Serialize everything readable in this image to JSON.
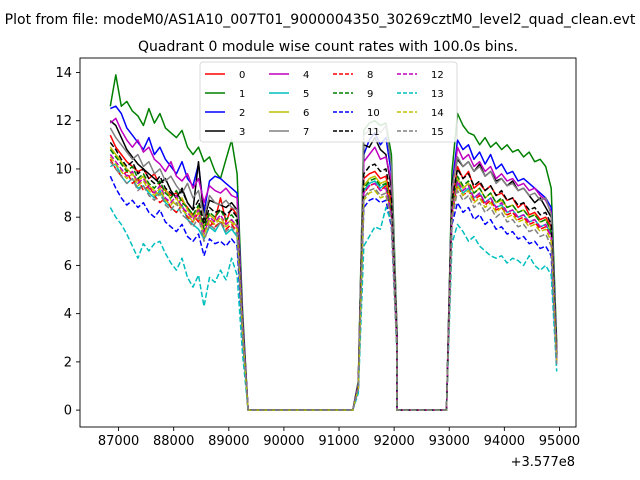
{
  "chart_data": {
    "type": "line",
    "suptitle": "Plot from file: modeM0/AS1A10_007T01_9000004350_30269cztM0_level2_quad_clean.evt",
    "title": "Quadrant 0 module wise count rates with 100.0s bins.",
    "xlabel": "",
    "ylabel": "",
    "x_offset_label": "+3.577e8",
    "xlim": [
      86300,
      95300
    ],
    "ylim": [
      -0.7,
      14.6
    ],
    "xticks": [
      87000,
      88000,
      89000,
      90000,
      91000,
      92000,
      93000,
      94000,
      95000
    ],
    "xtick_labels": [
      "87000",
      "88000",
      "89000",
      "90000",
      "91000",
      "92000",
      "93000",
      "94000",
      "95000"
    ],
    "yticks": [
      0,
      2,
      4,
      6,
      8,
      10,
      12,
      14
    ],
    "ytick_labels": [
      "0",
      "2",
      "4",
      "6",
      "8",
      "10",
      "12",
      "14"
    ],
    "legend_position": "upper center",
    "x_start": 86850,
    "x_step": 100,
    "gap_ranges": [
      [
        89350,
        91250
      ],
      [
        92050,
        92950
      ]
    ],
    "series": [
      {
        "name": "0",
        "color": "#ff0000",
        "dashed": false,
        "seg1": [
          11.4,
          10.9,
          10.6,
          10.3,
          10.1,
          9.9,
          10.0,
          9.6,
          9.8,
          9.3,
          9.1,
          8.9,
          9.0,
          8.7,
          8.4,
          8.1,
          7.8,
          8.5,
          7.6,
          7.9,
          8.8,
          7.8,
          8.4,
          8.1,
          3.5
        ],
        "seg2": [
          1.0,
          9.6,
          9.8,
          9.9,
          9.6,
          9.7,
          8.6,
          3.0
        ],
        "seg3": [
          8.5,
          10.1,
          9.6,
          9.9,
          9.2,
          9.4,
          9.1,
          9.3,
          8.9,
          9.0,
          8.7,
          8.8,
          8.4,
          8.6,
          8.1,
          8.2,
          7.9,
          8.0,
          7.6,
          2.3
        ]
      },
      {
        "name": "1",
        "color": "#008000",
        "dashed": false,
        "seg1": [
          12.6,
          13.9,
          12.6,
          12.8,
          12.4,
          12.2,
          11.8,
          12.5,
          11.9,
          12.3,
          11.7,
          11.5,
          11.3,
          11.6,
          10.9,
          10.6,
          10.9,
          10.3,
          10.5,
          9.9,
          9.6,
          10.4,
          11.2,
          9.8,
          4.1
        ],
        "seg2": [
          1.2,
          11.6,
          11.9,
          12.0,
          11.8,
          11.9,
          10.6,
          3.5
        ],
        "seg3": [
          9.9,
          12.3,
          11.8,
          11.5,
          11.4,
          11.0,
          11.3,
          10.9,
          11.1,
          10.8,
          11.0,
          10.7,
          10.8,
          10.5,
          10.7,
          10.3,
          10.4,
          10.1,
          9.2,
          2.8
        ]
      },
      {
        "name": "2",
        "color": "#0000ff",
        "dashed": false,
        "seg1": [
          12.5,
          12.6,
          12.3,
          11.7,
          11.4,
          11.1,
          10.8,
          11.3,
          10.6,
          10.9,
          10.4,
          10.1,
          9.8,
          10.3,
          9.6,
          9.3,
          10.2,
          8.2,
          9.5,
          9.7,
          9.6,
          9.4,
          9.2,
          9.0,
          3.8
        ],
        "seg2": [
          1.1,
          10.6,
          11.2,
          11.5,
          11.0,
          11.3,
          9.8,
          3.2
        ],
        "seg3": [
          9.3,
          11.2,
          10.8,
          11.0,
          10.4,
          10.7,
          10.2,
          10.6,
          10.0,
          10.2,
          9.8,
          9.9,
          9.5,
          9.6,
          9.4,
          9.2,
          9.0,
          8.8,
          8.4,
          2.5
        ]
      },
      {
        "name": "3",
        "color": "#000000",
        "dashed": false,
        "seg1": [
          12.0,
          11.8,
          11.3,
          10.8,
          10.5,
          10.2,
          10.0,
          9.8,
          9.6,
          9.4,
          9.6,
          9.1,
          8.8,
          9.2,
          8.6,
          8.3,
          10.3,
          7.9,
          8.7,
          8.6,
          8.5,
          8.4,
          8.6,
          8.3,
          3.6
        ],
        "seg2": [
          1.1,
          11.0,
          10.9,
          11.3,
          10.8,
          10.6,
          9.2,
          3.1
        ],
        "seg3": [
          9.4,
          10.4,
          10.1,
          10.3,
          9.9,
          10.2,
          9.7,
          9.9,
          9.5,
          9.6,
          9.3,
          9.5,
          9.1,
          9.2,
          8.9,
          8.6,
          8.8,
          8.4,
          8.0,
          2.4
        ]
      },
      {
        "name": "4",
        "color": "#bf00bf",
        "dashed": false,
        "seg1": [
          11.9,
          12.1,
          11.6,
          11.2,
          10.9,
          11.2,
          10.7,
          10.9,
          10.4,
          10.2,
          9.9,
          10.3,
          9.7,
          9.5,
          9.8,
          9.2,
          9.6,
          8.6,
          9.3,
          9.1,
          9.0,
          9.2,
          8.9,
          8.8,
          3.7
        ],
        "seg2": [
          1.1,
          10.3,
          10.6,
          10.9,
          10.4,
          10.5,
          9.5,
          3.2
        ],
        "seg3": [
          9.0,
          10.9,
          10.4,
          10.6,
          10.1,
          10.3,
          9.9,
          10.1,
          9.6,
          9.8,
          9.5,
          9.6,
          9.3,
          9.4,
          9.1,
          9.2,
          8.9,
          8.7,
          8.2,
          2.4
        ]
      },
      {
        "name": "5",
        "color": "#00bfbf",
        "dashed": false,
        "seg1": [
          10.1,
          10.2,
          9.7,
          9.4,
          9.6,
          9.2,
          9.3,
          9.0,
          8.8,
          9.1,
          8.6,
          8.4,
          8.2,
          8.5,
          7.9,
          7.7,
          7.5,
          7.1,
          7.6,
          7.4,
          7.8,
          7.3,
          7.5,
          7.2,
          3.0
        ],
        "seg2": [
          0.9,
          9.1,
          9.4,
          9.5,
          9.2,
          9.4,
          8.2,
          2.7
        ],
        "seg3": [
          8.2,
          9.4,
          9.0,
          9.2,
          8.8,
          9.0,
          8.6,
          8.8,
          8.4,
          8.5,
          8.2,
          8.3,
          8.0,
          8.1,
          7.8,
          7.9,
          7.6,
          7.7,
          7.3,
          2.2
        ]
      },
      {
        "name": "6",
        "color": "#bfbf00",
        "dashed": false,
        "seg1": [
          10.9,
          10.6,
          10.3,
          10.0,
          9.8,
          9.5,
          9.7,
          9.3,
          9.1,
          8.9,
          9.2,
          8.7,
          8.5,
          8.8,
          8.3,
          8.0,
          8.4,
          7.6,
          8.1,
          7.9,
          7.8,
          7.7,
          7.9,
          7.6,
          3.2
        ],
        "seg2": [
          0.9,
          9.3,
          9.6,
          9.7,
          9.4,
          9.5,
          8.3,
          2.8
        ],
        "seg3": [
          8.4,
          9.6,
          9.2,
          9.4,
          9.0,
          9.2,
          8.8,
          9.0,
          8.6,
          8.7,
          8.4,
          8.5,
          8.2,
          8.3,
          8.0,
          8.1,
          7.8,
          7.9,
          7.4,
          2.2
        ]
      },
      {
        "name": "7",
        "color": "#808080",
        "dashed": false,
        "seg1": [
          11.7,
          11.3,
          11.0,
          10.7,
          10.4,
          10.6,
          10.1,
          10.3,
          9.8,
          10.0,
          9.5,
          9.7,
          9.3,
          9.0,
          9.4,
          8.8,
          9.1,
          8.0,
          8.9,
          8.6,
          8.5,
          8.7,
          8.4,
          8.3,
          3.5
        ],
        "seg2": [
          1.0,
          11.4,
          11.6,
          11.7,
          11.5,
          11.8,
          10.1,
          3.4
        ],
        "seg3": [
          9.2,
          10.5,
          10.1,
          10.3,
          9.9,
          10.1,
          9.7,
          9.9,
          9.4,
          9.6,
          9.3,
          9.4,
          9.1,
          9.2,
          8.9,
          9.0,
          8.7,
          8.8,
          8.1,
          2.4
        ]
      },
      {
        "name": "8",
        "color": "#ff0000",
        "dashed": true,
        "seg1": [
          10.4,
          10.0,
          9.7,
          9.9,
          9.4,
          9.6,
          9.1,
          9.3,
          8.9,
          8.6,
          8.8,
          8.4,
          8.2,
          8.5,
          8.0,
          7.8,
          8.2,
          7.4,
          7.9,
          7.6,
          7.8,
          7.5,
          7.7,
          7.4,
          3.1
        ],
        "seg2": [
          0.9,
          9.0,
          9.3,
          9.4,
          9.1,
          9.3,
          8.1,
          2.7
        ],
        "seg3": [
          8.1,
          9.3,
          8.9,
          9.1,
          8.7,
          8.9,
          8.5,
          8.7,
          8.3,
          8.4,
          8.1,
          8.2,
          7.9,
          8.0,
          7.7,
          7.8,
          7.5,
          7.6,
          7.2,
          2.1
        ]
      },
      {
        "name": "9",
        "color": "#008000",
        "dashed": true,
        "seg1": [
          10.8,
          10.5,
          10.2,
          9.9,
          10.1,
          9.6,
          9.8,
          9.4,
          9.2,
          9.5,
          9.0,
          8.8,
          9.1,
          8.6,
          8.4,
          8.1,
          8.5,
          7.5,
          8.2,
          8.0,
          8.3,
          7.9,
          8.1,
          7.8,
          3.3
        ],
        "seg2": [
          0.9,
          9.2,
          9.5,
          9.6,
          9.3,
          9.4,
          8.2,
          2.8
        ],
        "seg3": [
          8.3,
          9.7,
          9.3,
          9.5,
          9.0,
          9.2,
          8.8,
          9.0,
          8.6,
          8.8,
          8.4,
          8.5,
          8.2,
          8.3,
          8.0,
          8.1,
          7.8,
          7.9,
          7.4,
          2.2
        ]
      },
      {
        "name": "10",
        "color": "#0000ff",
        "dashed": true,
        "seg1": [
          9.7,
          9.2,
          8.8,
          8.5,
          8.7,
          8.4,
          8.6,
          8.2,
          8.0,
          8.3,
          7.8,
          7.6,
          7.4,
          7.7,
          7.2,
          7.0,
          7.3,
          6.4,
          7.1,
          6.9,
          7.0,
          6.8,
          7.1,
          6.8,
          2.9
        ],
        "seg2": [
          0.8,
          8.4,
          8.7,
          8.8,
          8.6,
          8.7,
          7.6,
          2.5
        ],
        "seg3": [
          7.7,
          8.6,
          8.2,
          8.4,
          7.9,
          8.1,
          7.7,
          7.9,
          7.5,
          7.6,
          7.3,
          7.4,
          7.1,
          7.2,
          6.9,
          7.0,
          6.7,
          6.8,
          6.4,
          1.9
        ]
      },
      {
        "name": "11",
        "color": "#000000",
        "dashed": true,
        "seg1": [
          11.1,
          10.8,
          10.4,
          10.1,
          10.3,
          9.8,
          10.0,
          9.6,
          9.4,
          9.7,
          9.2,
          9.0,
          8.8,
          9.1,
          8.6,
          8.3,
          8.7,
          7.7,
          8.4,
          8.2,
          8.3,
          8.1,
          8.3,
          8.0,
          3.4
        ],
        "seg2": [
          1.0,
          9.8,
          10.1,
          10.2,
          9.9,
          10.0,
          8.8,
          3.0
        ],
        "seg3": [
          8.7,
          10.0,
          9.6,
          9.8,
          9.3,
          9.5,
          9.1,
          9.3,
          8.9,
          9.1,
          8.7,
          8.8,
          8.5,
          8.6,
          8.3,
          8.4,
          8.1,
          8.2,
          7.7,
          2.3
        ]
      },
      {
        "name": "12",
        "color": "#bf00bf",
        "dashed": true,
        "seg1": [
          10.6,
          10.3,
          10.0,
          9.7,
          9.9,
          9.4,
          9.6,
          9.2,
          9.0,
          9.3,
          8.8,
          8.6,
          8.9,
          8.4,
          8.2,
          7.9,
          8.3,
          7.3,
          8.0,
          7.8,
          8.1,
          7.7,
          7.9,
          7.6,
          3.2
        ],
        "seg2": [
          0.9,
          9.0,
          9.3,
          9.4,
          9.1,
          9.2,
          8.1,
          2.7
        ],
        "seg3": [
          8.2,
          9.5,
          9.1,
          9.3,
          8.8,
          9.0,
          8.6,
          8.8,
          8.4,
          8.6,
          8.2,
          8.3,
          8.0,
          8.1,
          7.8,
          7.9,
          7.6,
          7.7,
          7.2,
          2.1
        ]
      },
      {
        "name": "13",
        "color": "#00bfbf",
        "dashed": true,
        "seg1": [
          8.4,
          8.0,
          7.7,
          7.3,
          6.8,
          6.3,
          6.9,
          6.6,
          6.9,
          7.0,
          6.5,
          6.1,
          5.8,
          6.3,
          5.5,
          5.1,
          5.6,
          4.3,
          5.5,
          5.3,
          5.8,
          5.4,
          6.3,
          5.6,
          2.3
        ],
        "seg2": [
          0.7,
          6.8,
          7.2,
          7.6,
          7.5,
          8.4,
          7.8,
          2.4
        ],
        "seg3": [
          6.9,
          7.7,
          7.4,
          7.0,
          7.2,
          6.8,
          6.6,
          6.4,
          6.3,
          6.4,
          6.1,
          6.3,
          6.2,
          6.0,
          6.4,
          6.0,
          5.8,
          6.0,
          5.6,
          1.6
        ]
      },
      {
        "name": "14",
        "color": "#bfbf00",
        "dashed": true,
        "seg1": [
          10.5,
          10.2,
          9.9,
          9.6,
          9.8,
          9.3,
          9.5,
          9.1,
          8.9,
          9.2,
          8.7,
          8.5,
          8.8,
          8.3,
          8.1,
          7.8,
          8.2,
          7.2,
          7.9,
          7.7,
          8.0,
          7.6,
          7.8,
          7.5,
          3.2
        ],
        "seg2": [
          0.9,
          8.7,
          9.0,
          9.1,
          8.8,
          8.9,
          7.9,
          2.6
        ],
        "seg3": [
          8.0,
          9.3,
          8.9,
          9.1,
          8.6,
          8.8,
          8.4,
          8.6,
          8.2,
          8.4,
          8.0,
          8.1,
          7.8,
          7.9,
          7.6,
          7.7,
          7.4,
          7.5,
          7.0,
          2.0
        ]
      },
      {
        "name": "15",
        "color": "#808080",
        "dashed": true,
        "seg1": [
          10.3,
          10.0,
          9.7,
          9.4,
          9.6,
          9.1,
          9.3,
          8.9,
          8.7,
          9.0,
          8.5,
          8.3,
          8.6,
          8.1,
          7.9,
          7.6,
          8.0,
          7.0,
          7.7,
          7.5,
          7.8,
          7.4,
          7.6,
          7.3,
          3.1
        ],
        "seg2": [
          0.9,
          8.8,
          9.1,
          9.2,
          8.9,
          9.0,
          7.9,
          2.6
        ],
        "seg3": [
          7.9,
          9.1,
          8.7,
          8.9,
          8.4,
          8.6,
          8.2,
          8.4,
          8.0,
          8.2,
          7.8,
          7.9,
          7.6,
          7.7,
          7.4,
          7.5,
          7.2,
          7.3,
          6.8,
          1.9
        ]
      }
    ]
  }
}
